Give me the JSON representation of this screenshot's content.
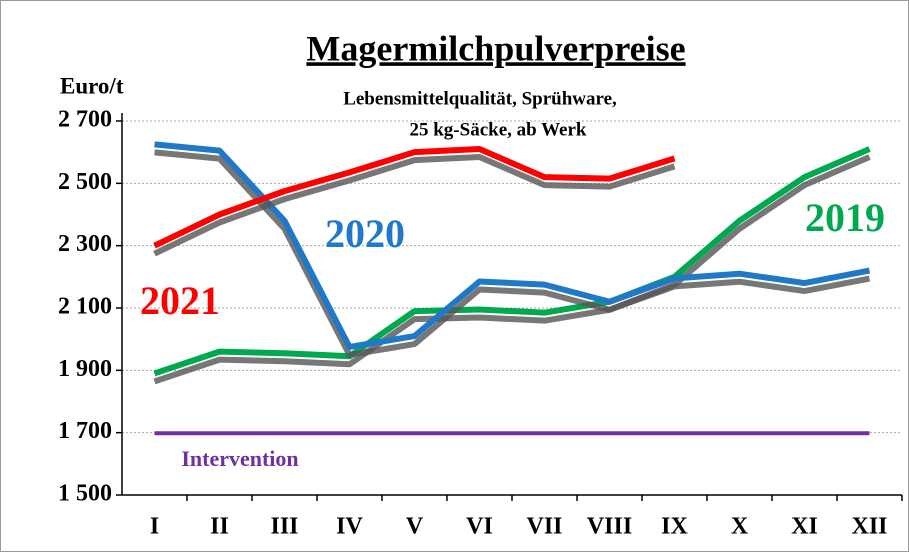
{
  "chart_data": {
    "type": "line",
    "title": "Magermilchpulverpreise",
    "subtitle": [
      "Lebensmittelqualität, Sprühware,",
      "25 kg-Säcke, ab Werk"
    ],
    "y_label": "Euro/t",
    "categories": [
      "I",
      "II",
      "III",
      "IV",
      "V",
      "VI",
      "VII",
      "VIII",
      "IX",
      "X",
      "XI",
      "XII"
    ],
    "series": [
      {
        "name": "2019",
        "color": "#00a94f",
        "values": [
          1890,
          1960,
          1955,
          1945,
          2090,
          2095,
          2085,
          2120,
          2200,
          2380,
          2520,
          2610
        ]
      },
      {
        "name": "2020",
        "color": "#1f78c8",
        "values": [
          2625,
          2605,
          2380,
          1975,
          2010,
          2185,
          2175,
          2120,
          2195,
          2210,
          2180,
          2220
        ]
      },
      {
        "name": "2021",
        "color": "#ff0000",
        "values": [
          2300,
          2400,
          2475,
          2535,
          2600,
          2610,
          2520,
          2515,
          2580,
          null,
          null,
          null
        ]
      },
      {
        "name": "Intervention",
        "color": "#7030a0",
        "values": [
          1698,
          1698,
          1698,
          1698,
          1698,
          1698,
          1698,
          1698,
          1698,
          1698,
          1698,
          1698
        ]
      }
    ],
    "ylim": [
      1500,
      2700
    ],
    "yticks": [
      {
        "value": 1500,
        "label": "1 500"
      },
      {
        "value": 1700,
        "label": "1 700"
      },
      {
        "value": 1900,
        "label": "1 900"
      },
      {
        "value": 2100,
        "label": "2 100"
      },
      {
        "value": 2300,
        "label": "2 300"
      },
      {
        "value": 2500,
        "label": "2 500"
      },
      {
        "value": 2700,
        "label": "2 700"
      }
    ],
    "grid": true
  }
}
